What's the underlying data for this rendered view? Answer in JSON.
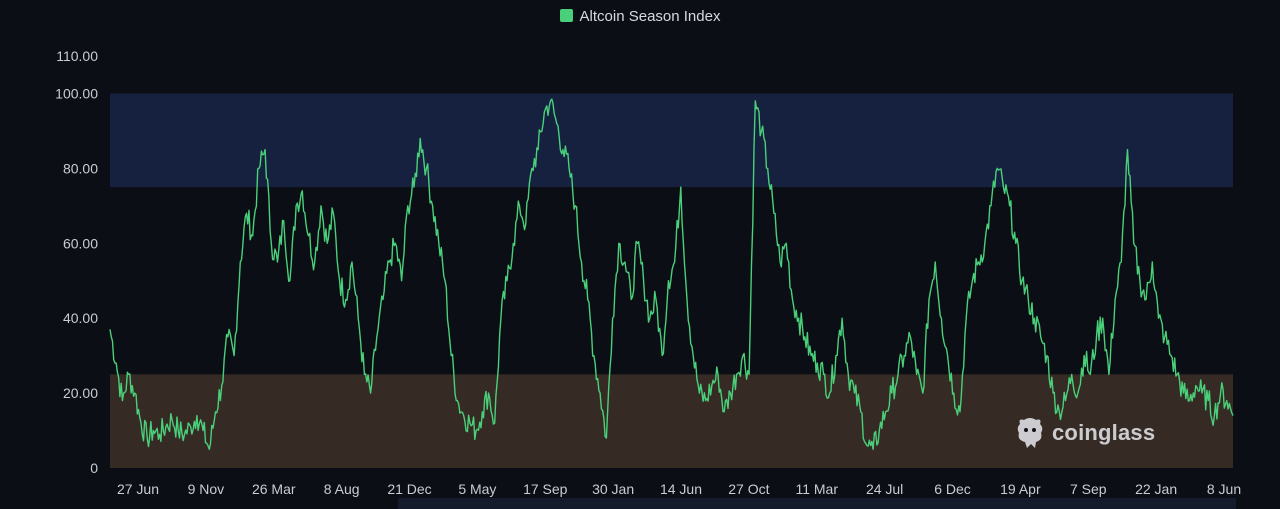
{
  "legend": {
    "label": "Altcoin Season Index",
    "color": "#4ad07a"
  },
  "watermark": {
    "text": "coinglass",
    "icon": "coinglass-logo-icon"
  },
  "colors": {
    "background": "#0b0e14",
    "line": "#4ad07a",
    "altcoin_season_band": "#16213f",
    "bitcoin_season_band": "#362b24",
    "axis_text": "#c8ccd4"
  },
  "chart_data": {
    "type": "line",
    "title": "",
    "xlabel": "",
    "ylabel": "",
    "ylim": [
      0,
      110
    ],
    "y_ticks": [
      "0",
      "20.00",
      "40.00",
      "60.00",
      "80.00",
      "100.00",
      "110.00"
    ],
    "x_ticks": [
      "27 Jun",
      "9 Nov",
      "26 Mar",
      "8 Aug",
      "21 Dec",
      "5 May",
      "17 Sep",
      "30 Jan",
      "14 Jun",
      "27 Oct",
      "11 Mar",
      "24 Jul",
      "6 Dec",
      "19 Apr",
      "7 Sep",
      "22 Jan",
      "8 Jun"
    ],
    "bands": [
      {
        "from": 75,
        "to": 100,
        "color": "#16213f"
      },
      {
        "from": 0,
        "to": 25,
        "color": "#362b24"
      }
    ],
    "grid": false,
    "legend_position": "top-center",
    "series": [
      {
        "name": "Altcoin Season Index",
        "color": "#4ad07a",
        "x_index_range": [
          0,
          1000
        ],
        "values": [
          37,
          28,
          18,
          25,
          20,
          12,
          8,
          10,
          9,
          11,
          13,
          10,
          9,
          11,
          14,
          10,
          5,
          15,
          22,
          35,
          30,
          55,
          68,
          62,
          80,
          85,
          60,
          55,
          66,
          50,
          70,
          74,
          62,
          55,
          70,
          60,
          68,
          50,
          45,
          55,
          40,
          25,
          20,
          35,
          45,
          55,
          60,
          50,
          70,
          75,
          88,
          80,
          70,
          60,
          50,
          30,
          18,
          14,
          12,
          10,
          15,
          20,
          12,
          40,
          50,
          60,
          70,
          65,
          80,
          85,
          95,
          98,
          92,
          85,
          80,
          70,
          55,
          45,
          30,
          20,
          8,
          40,
          60,
          55,
          45,
          60,
          50,
          40,
          45,
          30,
          50,
          55,
          75,
          45,
          30,
          20,
          18,
          22,
          25,
          15,
          20,
          25,
          30,
          25,
          98,
          90,
          80,
          68,
          55,
          60,
          45,
          40,
          35,
          30,
          28,
          25,
          20,
          30,
          40,
          25,
          20,
          15,
          6,
          5,
          10,
          15,
          20,
          25,
          30,
          35,
          25,
          20,
          45,
          55,
          40,
          30,
          20,
          15,
          40,
          50,
          55,
          60,
          70,
          80,
          75,
          70,
          60,
          50,
          45,
          40,
          35,
          30,
          20,
          15,
          18,
          25,
          20,
          30,
          25,
          35,
          40,
          25,
          45,
          55,
          85,
          60,
          50,
          45,
          55,
          40,
          35,
          30,
          25,
          20,
          18,
          22,
          20,
          18,
          14,
          20,
          18,
          14
        ]
      }
    ]
  }
}
